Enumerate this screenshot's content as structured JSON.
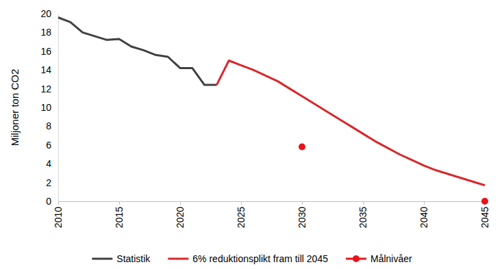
{
  "chart_data": {
    "type": "line",
    "y_label": "Miljoner ton CO2",
    "x": [
      2010,
      2011,
      2012,
      2013,
      2014,
      2015,
      2016,
      2017,
      2018,
      2019,
      2020,
      2021,
      2022,
      2023,
      2024,
      2025,
      2026,
      2027,
      2028,
      2029,
      2030,
      2031,
      2032,
      2033,
      2034,
      2035,
      2036,
      2037,
      2038,
      2039,
      2040,
      2041,
      2042,
      2043,
      2044,
      2045
    ],
    "series": [
      {
        "name": "Statistik",
        "color": "#404040",
        "type": "line",
        "values": [
          19.6,
          19.1,
          18.0,
          17.6,
          17.2,
          17.3,
          16.5,
          16.1,
          15.6,
          15.4,
          14.2,
          14.2,
          12.4,
          12.4,
          null,
          null,
          null,
          null,
          null,
          null,
          null,
          null,
          null,
          null,
          null,
          null,
          null,
          null,
          null,
          null,
          null,
          null,
          null,
          null,
          null,
          null
        ]
      },
      {
        "name": "6% reduktionsplikt fram till 2045",
        "color": "#d9262b",
        "type": "line",
        "values": [
          null,
          null,
          null,
          null,
          null,
          null,
          null,
          null,
          null,
          null,
          null,
          null,
          null,
          12.4,
          15.0,
          14.5,
          14.0,
          13.4,
          12.8,
          12.0,
          11.2,
          10.4,
          9.6,
          8.8,
          8.0,
          7.2,
          6.4,
          5.7,
          5.0,
          4.4,
          3.8,
          3.3,
          2.9,
          2.5,
          2.1,
          1.7
        ]
      },
      {
        "name": "Målnivåer",
        "color": "#e8141b",
        "type": "scatter",
        "marker": "circle",
        "values": [
          null,
          null,
          null,
          null,
          null,
          null,
          null,
          null,
          null,
          null,
          null,
          null,
          null,
          null,
          null,
          null,
          null,
          null,
          null,
          null,
          5.8,
          null,
          null,
          null,
          null,
          null,
          null,
          null,
          null,
          null,
          null,
          null,
          null,
          null,
          null,
          0
        ]
      }
    ],
    "xlim": [
      2010,
      2045
    ],
    "xticks": [
      2010,
      2015,
      2020,
      2025,
      2030,
      2035,
      2040,
      2045
    ],
    "ylim": [
      0,
      20
    ],
    "yticks": [
      0,
      2,
      4,
      6,
      8,
      10,
      12,
      14,
      16,
      18,
      20
    ],
    "grid": false,
    "legend": "bottom"
  }
}
